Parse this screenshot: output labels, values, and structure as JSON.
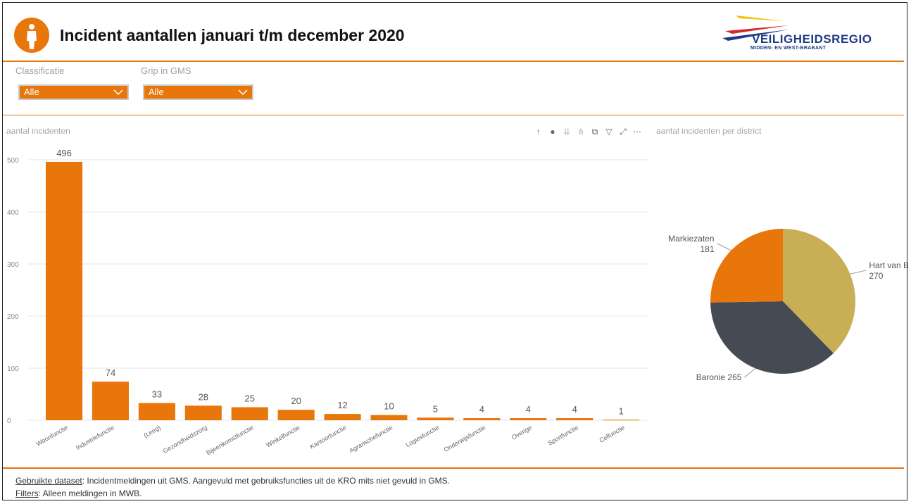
{
  "header": {
    "title": "Incident aantallen januari t/m december 2020",
    "brand_name": "VEILIGHEIDSREGIO",
    "brand_sub": "MIDDEN- EN WEST-BRABANT",
    "accent_color": "#e8760a",
    "logo_icon": "firefighter-icon"
  },
  "filters": {
    "classificatie": {
      "label": "Classificatie",
      "value": "Alle"
    },
    "grip": {
      "label": "Grip in GMS",
      "value": "Alle"
    }
  },
  "toolbar": {
    "icons": [
      "arrow-up-icon",
      "drill-down-icon",
      "expand-all-icon",
      "hierarchy-icon",
      "copy-icon",
      "filter-icon",
      "focus-mode-icon",
      "more-options-icon"
    ]
  },
  "chart_data": [
    {
      "type": "bar",
      "title": "aantal incidenten",
      "categories": [
        "Woonfunctie",
        "Industriefunctie",
        "(Leeg)",
        "Gezondheidszorg",
        "Bijeenkomstfunctie",
        "Winkelfunctie",
        "Kantoorfunctie",
        "Agrarischefunctie",
        "Logiesfunctie",
        "Onderwijsfunctie",
        "Overige",
        "Sportfunctie",
        "Celfunctie"
      ],
      "values": [
        496,
        74,
        33,
        28,
        25,
        20,
        12,
        10,
        5,
        4,
        4,
        4,
        1
      ],
      "ylim": [
        0,
        500
      ],
      "yticks": [
        0,
        100,
        200,
        300,
        400,
        500
      ],
      "grid": true,
      "bar_color": "#e8760a"
    },
    {
      "type": "pie",
      "title": "aantal incidenten per district",
      "slices": [
        {
          "label": "Hart van Brab...",
          "value": 270,
          "color": "#c8ae55"
        },
        {
          "label": "Baronie",
          "value": 265,
          "color": "#464b53"
        },
        {
          "label": "Markiezaten",
          "value": 181,
          "color": "#e8760a"
        }
      ]
    }
  ],
  "footer": {
    "dataset_label": "Gebruikte dataset",
    "dataset_text": ": Incidentmeldingen uit GMS. Aangevuld met gebruiksfuncties uit de KRO mits niet gevuld in GMS.",
    "filters_label": "Filters",
    "filters_text": ": Alleen meldingen in MWB."
  }
}
